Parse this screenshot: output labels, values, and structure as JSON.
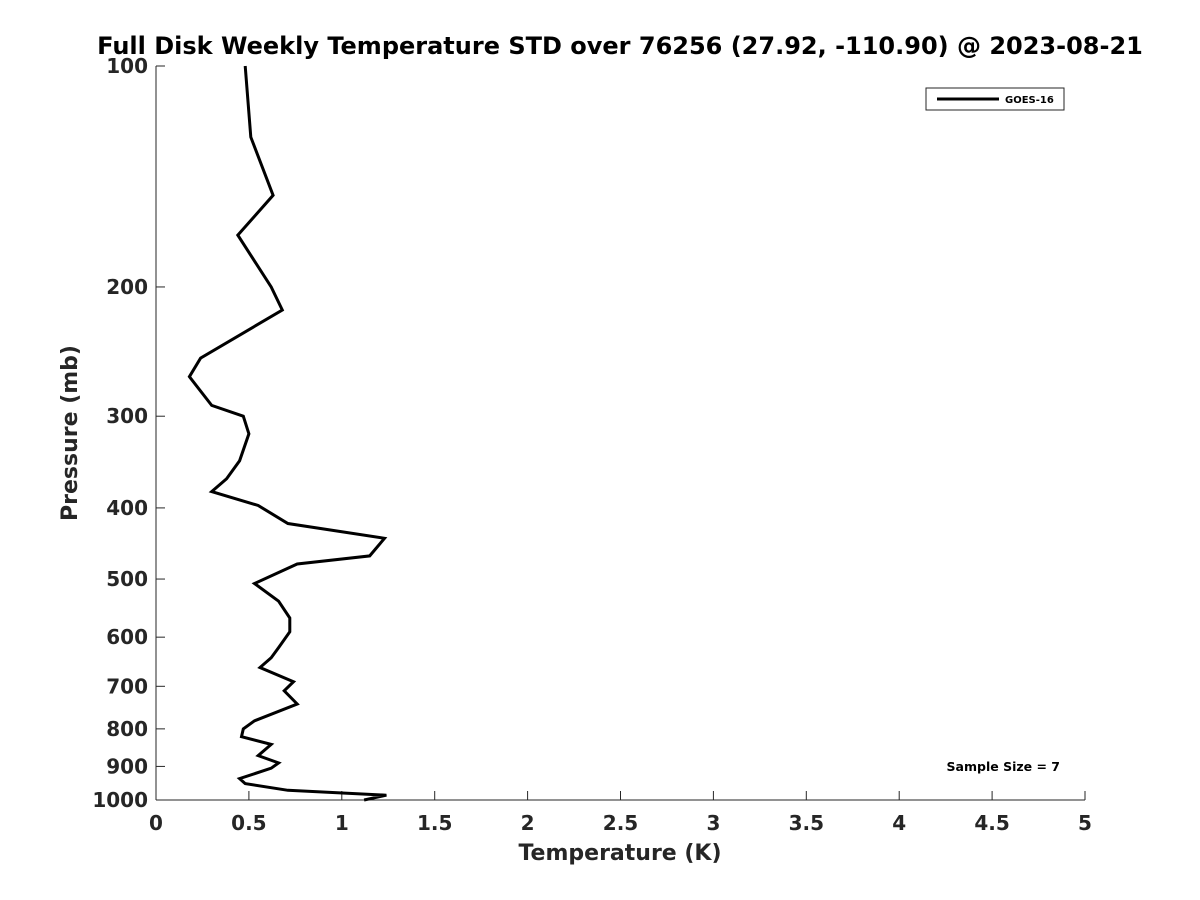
{
  "chart_data": {
    "type": "line",
    "title": "Full Disk Weekly Temperature STD over 76256 (27.92, -110.90) @ 2023-08-21",
    "xlabel": "Temperature (K)",
    "ylabel": "Pressure (mb)",
    "xlim": [
      0,
      5
    ],
    "ylim": [
      100,
      1000
    ],
    "yscale": "log",
    "yreversed": true,
    "xticks": [
      0,
      0.5,
      1,
      1.5,
      2,
      2.5,
      3,
      3.5,
      4,
      4.5,
      5
    ],
    "xtick_labels": [
      "0",
      "0.5",
      "1",
      "1.5",
      "2",
      "2.5",
      "3",
      "3.5",
      "4",
      "4.5",
      "5"
    ],
    "yticks": [
      100,
      200,
      300,
      400,
      500,
      600,
      700,
      800,
      900,
      1000
    ],
    "ytick_labels": [
      "100",
      "200",
      "300",
      "400",
      "500",
      "600",
      "700",
      "800",
      "900",
      "1000"
    ],
    "grid": false,
    "legend_placement": "top-right",
    "annotation": "Sample Size = 7",
    "series": [
      {
        "name": "GOES-16",
        "color": "#000000",
        "points": [
          [
            0.48,
            100
          ],
          [
            0.51,
            125
          ],
          [
            0.63,
            150
          ],
          [
            0.44,
            170
          ],
          [
            0.62,
            200
          ],
          [
            0.68,
            215
          ],
          [
            0.24,
            250
          ],
          [
            0.18,
            265
          ],
          [
            0.3,
            290
          ],
          [
            0.47,
            300
          ],
          [
            0.5,
            317
          ],
          [
            0.45,
            345
          ],
          [
            0.38,
            365
          ],
          [
            0.3,
            380
          ],
          [
            0.55,
            397
          ],
          [
            0.71,
            420
          ],
          [
            1.23,
            440
          ],
          [
            1.15,
            465
          ],
          [
            0.76,
            477
          ],
          [
            0.53,
            507
          ],
          [
            0.66,
            536
          ],
          [
            0.72,
            565
          ],
          [
            0.72,
            590
          ],
          [
            0.66,
            620
          ],
          [
            0.62,
            640
          ],
          [
            0.56,
            660
          ],
          [
            0.74,
            690
          ],
          [
            0.69,
            710
          ],
          [
            0.76,
            740
          ],
          [
            0.53,
            780
          ],
          [
            0.47,
            800
          ],
          [
            0.46,
            820
          ],
          [
            0.62,
            840
          ],
          [
            0.55,
            870
          ],
          [
            0.66,
            890
          ],
          [
            0.62,
            905
          ],
          [
            0.45,
            935
          ],
          [
            0.48,
            950
          ],
          [
            0.71,
            970
          ],
          [
            1.24,
            985
          ],
          [
            1.12,
            1000
          ]
        ]
      }
    ]
  }
}
